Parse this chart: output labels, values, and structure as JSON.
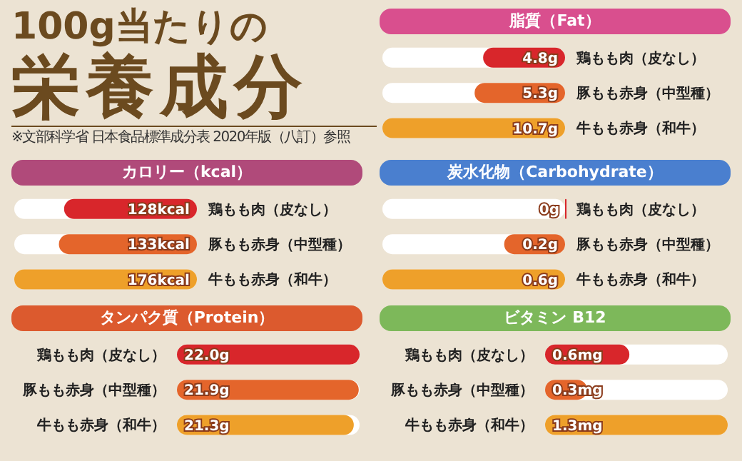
{
  "chart_data": [
    {
      "type": "other",
      "title": "100g当たりの",
      "subtitle": "栄養成分",
      "annotations": [
        "※文部科学省 日本食品標準成分表 2020年版（八訂）参照"
      ]
    },
    {
      "type": "bar",
      "orientation": "horizontal",
      "title": "脂質（Fat）",
      "categories": [
        "鶏もも肉（皮なし）",
        "豚もも赤身（中型種）",
        "牛もも赤身（和牛）"
      ],
      "values": [
        4.8,
        5.3,
        10.7
      ],
      "colors": [
        "#d8262b",
        "#e4652b",
        "#eea02a"
      ],
      "value_labels": [
        "4.8g",
        "5.3g",
        "10.7g"
      ]
    },
    {
      "type": "bar",
      "orientation": "horizontal",
      "title": "カロリー（kcal）",
      "categories": [
        "鶏もも肉（皮なし）",
        "豚もも赤身（中型種）",
        "牛もも赤身（和牛）"
      ],
      "values": [
        128,
        133,
        176
      ],
      "colors": [
        "#d8262b",
        "#e4652b",
        "#eea02a"
      ],
      "value_labels": [
        "128kcal",
        "133kcal",
        "176kcal"
      ]
    },
    {
      "type": "bar",
      "orientation": "horizontal",
      "title": "炭水化物（Carbohydrate）",
      "categories": [
        "鶏もも肉（皮なし）",
        "豚もも赤身（中型種）",
        "牛もも赤身（和牛）"
      ],
      "values": [
        0,
        0.2,
        0.6
      ],
      "colors": [
        "#d8262b",
        "#e4652b",
        "#eea02a"
      ],
      "value_labels": [
        "0g",
        "0.2g",
        "0.6g"
      ]
    },
    {
      "type": "bar",
      "orientation": "horizontal",
      "title": "タンパク質（Protein）",
      "categories": [
        "鶏もも肉（皮なし）",
        "豚もも赤身（中型種）",
        "牛もも赤身（和牛）"
      ],
      "values": [
        22.0,
        21.9,
        21.3
      ],
      "colors": [
        "#d8262b",
        "#e4652b",
        "#eea02a"
      ],
      "value_labels": [
        "22.0g",
        "21.9g",
        "21.3g"
      ]
    },
    {
      "type": "bar",
      "orientation": "horizontal",
      "title": "ビタミン B12",
      "categories": [
        "鶏もも肉（皮なし）",
        "豚もも赤身（中型種）",
        "牛もも赤身（和牛）"
      ],
      "values": [
        0.6,
        0.3,
        1.3
      ],
      "colors": [
        "#d8262b",
        "#e4652b",
        "#eea02a"
      ],
      "value_labels": [
        "0.6mg",
        "0.3mg",
        "1.3mg"
      ]
    }
  ]
}
